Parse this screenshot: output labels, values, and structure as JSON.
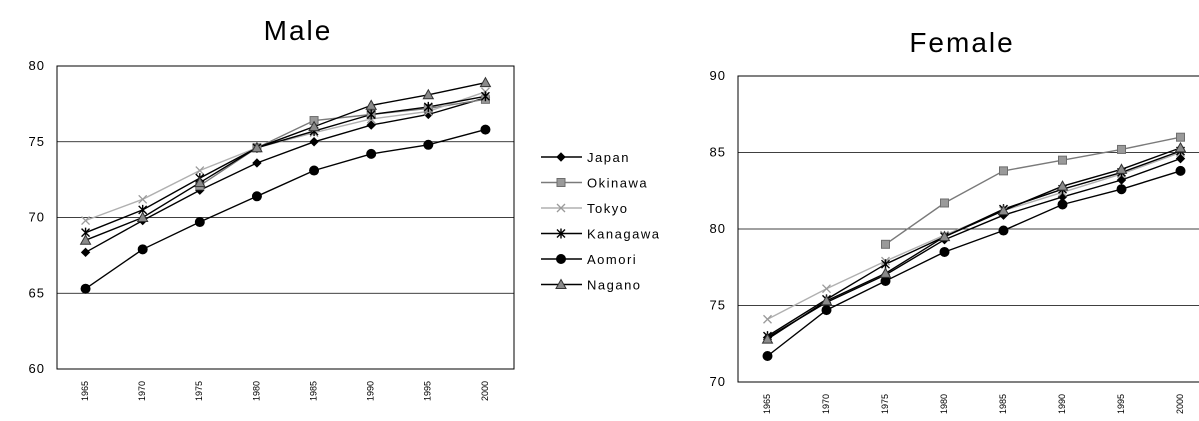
{
  "chart_data": [
    {
      "type": "line",
      "title": "Male",
      "xlabel": "",
      "ylabel": "",
      "categories": [
        "1965",
        "1970",
        "1975",
        "1980",
        "1985",
        "1990",
        "1995",
        "2000"
      ],
      "yticks": [
        "60",
        "65",
        "70",
        "75",
        "80"
      ],
      "ylim": [
        60,
        80
      ],
      "grid": true,
      "legend": "right",
      "series": [
        {
          "name": "Japan",
          "values": [
            67.7,
            69.8,
            71.8,
            73.6,
            75.0,
            76.1,
            76.8,
            77.9
          ]
        },
        {
          "name": "Okinawa",
          "values": [
            null,
            null,
            72.1,
            74.6,
            76.4,
            76.8,
            77.2,
            77.8
          ]
        },
        {
          "name": "Tokyo",
          "values": [
            69.8,
            71.2,
            73.1,
            74.6,
            75.6,
            76.5,
            77.0,
            78.3
          ]
        },
        {
          "name": "Kanagawa",
          "values": [
            69.0,
            70.5,
            72.6,
            74.6,
            75.7,
            76.8,
            77.3,
            78.0
          ]
        },
        {
          "name": "Aomori",
          "values": [
            65.3,
            67.9,
            69.7,
            71.4,
            73.1,
            74.2,
            74.8,
            75.8
          ]
        },
        {
          "name": "Nagano",
          "values": [
            68.5,
            70.0,
            72.3,
            74.6,
            76.0,
            77.4,
            78.1,
            78.9
          ]
        }
      ]
    },
    {
      "type": "line",
      "title": "Female",
      "xlabel": "",
      "ylabel": "",
      "categories": [
        "1965",
        "1970",
        "1975",
        "1980",
        "1985",
        "1990",
        "1995",
        "2000"
      ],
      "yticks": [
        "70",
        "75",
        "80",
        "85",
        "90"
      ],
      "ylim": [
        70,
        90
      ],
      "grid": true,
      "series": [
        {
          "name": "Japan",
          "values": [
            72.9,
            75.2,
            77.0,
            79.3,
            80.9,
            82.1,
            83.2,
            84.6
          ]
        },
        {
          "name": "Okinawa",
          "values": [
            null,
            null,
            79.0,
            81.7,
            83.8,
            84.5,
            85.2,
            86.0
          ]
        },
        {
          "name": "Tokyo",
          "values": [
            74.1,
            76.1,
            77.9,
            79.6,
            81.2,
            82.4,
            83.6,
            85.0
          ]
        },
        {
          "name": "Kanagawa",
          "values": [
            73.0,
            75.4,
            77.7,
            79.5,
            81.3,
            82.6,
            83.7,
            85.1
          ]
        },
        {
          "name": "Aomori",
          "values": [
            71.7,
            74.7,
            76.6,
            78.5,
            79.9,
            81.6,
            82.6,
            83.8
          ]
        },
        {
          "name": "Nagano",
          "values": [
            72.8,
            75.3,
            77.1,
            79.5,
            81.2,
            82.8,
            83.9,
            85.3
          ]
        }
      ]
    }
  ],
  "styles": {
    "Japan": {
      "marker": "diamond",
      "color": "#000000",
      "fill": "#000000",
      "line": "#000000"
    },
    "Okinawa": {
      "marker": "square",
      "color": "#6e6e6e",
      "fill": "#9a9a9a",
      "line": "#7a7a7a"
    },
    "Tokyo": {
      "marker": "x",
      "color": "#9a9a9a",
      "fill": "#9a9a9a",
      "line": "#b0b0b0"
    },
    "Kanagawa": {
      "marker": "asterisk",
      "color": "#000000",
      "fill": "#000000",
      "line": "#000000"
    },
    "Aomori": {
      "marker": "circle",
      "color": "#000000",
      "fill": "#000000",
      "line": "#000000"
    },
    "Nagano": {
      "marker": "triangle",
      "color": "#333333",
      "fill": "#8a8a8a",
      "line": "#000000"
    }
  }
}
